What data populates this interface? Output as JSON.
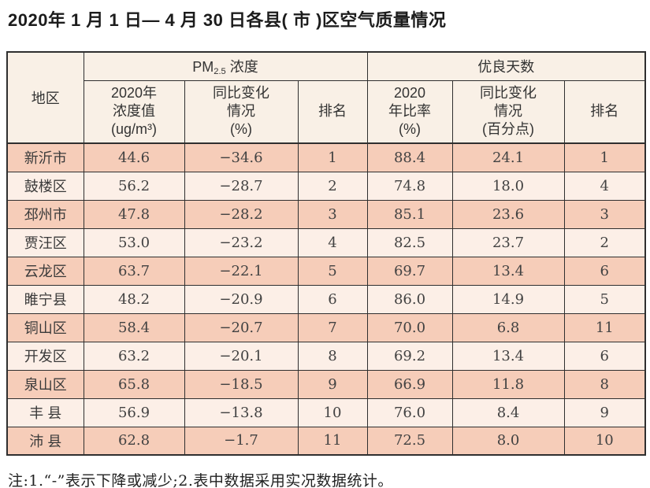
{
  "page": {
    "title": "2020年 1 月 1 日— 4 月 30 日各县( 市 )区空气质量情况",
    "note": "注:1.“-”表示下降或减少;2.表中数据采用实况数据统计。"
  },
  "colors": {
    "row_odd": "#f6cdb9",
    "row_even": "#fcefe7",
    "header_bg": "#f9f0e6",
    "border": "#2f2f2f"
  },
  "table": {
    "headers": {
      "region": "地区",
      "pm25_group": {
        "prefix": "PM",
        "subscript": "2.5",
        "suffix": " 浓度"
      },
      "good_days_group": "优良天数",
      "pm25_value": "2020年\n浓度值\n(ug/m³)",
      "pm25_change": "同比变化\n情况\n(%)",
      "pm25_rank": "排名",
      "good_ratio": "2020\n年比率\n(%)",
      "good_change": "同比变化\n情况\n(百分点)",
      "good_rank": "排名"
    },
    "rows": [
      {
        "region": "新沂市",
        "pm25": "44.6",
        "pm25_change": "−34.6",
        "pm25_rank": "1",
        "ratio": "88.4",
        "ratio_change": "24.1",
        "ratio_rank": "1"
      },
      {
        "region": "鼓楼区",
        "pm25": "56.2",
        "pm25_change": "−28.7",
        "pm25_rank": "2",
        "ratio": "74.8",
        "ratio_change": "18.0",
        "ratio_rank": "4"
      },
      {
        "region": "邳州市",
        "pm25": "47.8",
        "pm25_change": "−28.2",
        "pm25_rank": "3",
        "ratio": "85.1",
        "ratio_change": "23.6",
        "ratio_rank": "3"
      },
      {
        "region": "贾汪区",
        "pm25": "53.0",
        "pm25_change": "−23.2",
        "pm25_rank": "4",
        "ratio": "82.5",
        "ratio_change": "23.7",
        "ratio_rank": "2"
      },
      {
        "region": "云龙区",
        "pm25": "63.7",
        "pm25_change": "−22.1",
        "pm25_rank": "5",
        "ratio": "69.7",
        "ratio_change": "13.4",
        "ratio_rank": "6"
      },
      {
        "region": "睢宁县",
        "pm25": "48.2",
        "pm25_change": "−20.9",
        "pm25_rank": "6",
        "ratio": "86.0",
        "ratio_change": "14.9",
        "ratio_rank": "5"
      },
      {
        "region": "铜山区",
        "pm25": "58.4",
        "pm25_change": "−20.7",
        "pm25_rank": "7",
        "ratio": "70.0",
        "ratio_change": "6.8",
        "ratio_rank": "11"
      },
      {
        "region": "开发区",
        "pm25": "63.2",
        "pm25_change": "−20.1",
        "pm25_rank": "8",
        "ratio": "69.2",
        "ratio_change": "13.4",
        "ratio_rank": "6"
      },
      {
        "region": "泉山区",
        "pm25": "65.8",
        "pm25_change": "−18.5",
        "pm25_rank": "9",
        "ratio": "66.9",
        "ratio_change": "11.8",
        "ratio_rank": "8"
      },
      {
        "region": "丰 县",
        "pm25": "56.9",
        "pm25_change": "−13.8",
        "pm25_rank": "10",
        "ratio": "76.0",
        "ratio_change": "8.4",
        "ratio_rank": "9"
      },
      {
        "region": "沛 县",
        "pm25": "62.8",
        "pm25_change": "−1.7",
        "pm25_rank": "11",
        "ratio": "72.5",
        "ratio_change": "8.0",
        "ratio_rank": "10"
      }
    ]
  }
}
